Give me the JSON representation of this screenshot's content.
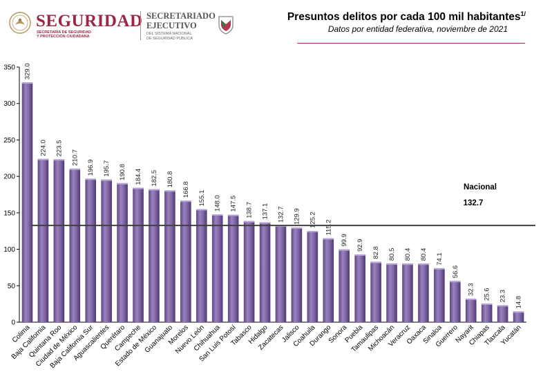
{
  "header": {
    "seguridad_title": "SEGURIDAD",
    "seguridad_sub_1": "SECRETARÍA DE SEGURIDAD",
    "seguridad_sub_2": "Y PROTECCIÓN CIUDADANA",
    "sesnsp_title_1": "SECRETARIADO",
    "sesnsp_title_2": "EJECUTIVO",
    "sesnsp_sub_1": "DEL SISTEMA NACIONAL",
    "sesnsp_sub_2": "DE SEGURIDAD PÚBLICA",
    "brand_color": "#9c2644"
  },
  "chart_data": {
    "type": "bar",
    "title": "Presuntos delitos por cada 100 mil habitantes",
    "title_note": "1/",
    "subtitle": "Datos por entidad federativa, noviembre de 2021",
    "categories": [
      "Colima",
      "Baja California",
      "Quintana Roo",
      "Ciudad de México",
      "Baja California Sur",
      "Aguascalientes",
      "Querétaro",
      "Campeche",
      "Estado de México",
      "Guanajuato",
      "Morelos",
      "Nuevo León",
      "Chihuahua",
      "San Luis Potosí",
      "Tabasco",
      "Hidalgo",
      "Zacatecas",
      "Jalisco",
      "Coahuila",
      "Durango",
      "Sonora",
      "Puebla",
      "Tamaulipas",
      "Michoacán",
      "Veracruz",
      "Oaxaca",
      "Sinaloa",
      "Guerrero",
      "Nayarit",
      "Chiapas",
      "Tlaxcala",
      "Yucatán"
    ],
    "values": [
      329.0,
      224.0,
      223.5,
      210.7,
      196.9,
      195.7,
      190.8,
      184.4,
      182.5,
      180.8,
      166.8,
      155.1,
      148.0,
      147.5,
      138.7,
      137.1,
      132.7,
      129.9,
      125.2,
      115.2,
      99.9,
      92.9,
      82.8,
      80.5,
      80.4,
      80.4,
      74.1,
      56.6,
      32.3,
      25.6,
      23.3,
      14.8
    ],
    "value_labels": [
      "329.0",
      "224.0",
      "223.5",
      "210.7",
      "196.9",
      "195.7",
      "190.8",
      "184.4",
      "182.5",
      "180.8",
      "166.8",
      "155.1",
      "148.0",
      "147.5",
      "138.7",
      "137.1",
      "132.7",
      "129.9",
      "125.2",
      "115.2",
      "99.9",
      "92.9",
      "82.8",
      "80.5",
      "80.4",
      "80.4",
      "74.1",
      "56.6",
      "32.3",
      "25.6",
      "23.3",
      "14.8"
    ],
    "yticks": [
      "0",
      "50",
      "100",
      "150",
      "200",
      "250",
      "300",
      "350"
    ],
    "ylim": [
      0,
      350
    ],
    "xlabel": "",
    "ylabel": "",
    "grid": false,
    "bar_color": "#8067a4",
    "reference_line": {
      "label": "Nacional",
      "value": 132.7,
      "value_label": "132.7",
      "color": "#404040"
    }
  }
}
